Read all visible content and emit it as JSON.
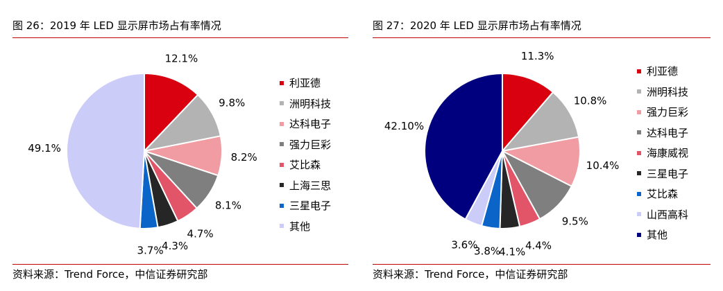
{
  "chart_data": [
    {
      "type": "pie",
      "title": "图 26：2019 年 LED 显示屏市场占有率情况",
      "source": "资料来源：Trend Force，中信证券研究部",
      "categories": [
        "利亚德",
        "洲明科技",
        "达科电子",
        "强力巨彩",
        "艾比森",
        "上海三思",
        "三星电子",
        "其他"
      ],
      "values": [
        12.1,
        9.8,
        8.2,
        8.1,
        4.7,
        4.3,
        3.7,
        49.1
      ],
      "value_labels": [
        "12.1%",
        "9.8%",
        "8.2%",
        "8.1%",
        "4.7%",
        "4.3%",
        "3.7%",
        "49.1%"
      ],
      "colors": [
        "#d9000f",
        "#b3b3b3",
        "#f09ca2",
        "#7f7f7f",
        "#e25468",
        "#262626",
        "#0b64c8",
        "#ccccf9"
      ],
      "start_angle": "12 o'clock",
      "direction": "clockwise",
      "legend_position": "right"
    },
    {
      "type": "pie",
      "title": "图 27：2020 年 LED 显示屏市场占有率情况",
      "source": "资料来源：Trend Force，中信证券研究部",
      "categories": [
        "利亚德",
        "洲明科技",
        "强力巨彩",
        "达科电子",
        "海康威视",
        "三星电子",
        "艾比森",
        "山西高科",
        "其他"
      ],
      "values": [
        11.3,
        10.8,
        10.4,
        9.5,
        4.4,
        4.1,
        3.8,
        3.6,
        42.1
      ],
      "value_labels": [
        "11.3%",
        "10.8%",
        "10.4%",
        "9.5%",
        "4.4%",
        "4.1%",
        "3.8%",
        "3.6%",
        "42.10%"
      ],
      "colors": [
        "#d9000f",
        "#b3b3b3",
        "#f09ca2",
        "#7f7f7f",
        "#e25468",
        "#262626",
        "#0b64c8",
        "#ccccf9",
        "#00007f"
      ],
      "start_angle": "12 o'clock",
      "direction": "clockwise",
      "legend_position": "right"
    }
  ]
}
